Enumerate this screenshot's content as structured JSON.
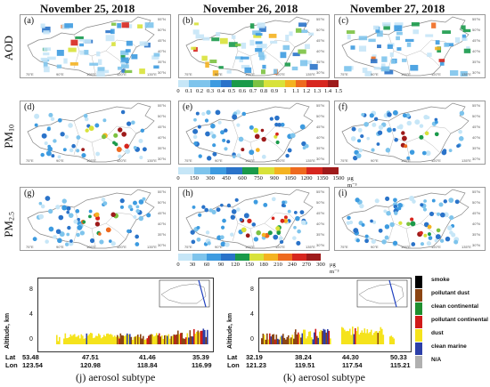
{
  "dates": [
    "November 25, 2018",
    "November 26, 2018",
    "November 27, 2018"
  ],
  "row_labels": {
    "aod": "AOD",
    "pm10_main": "PM",
    "pm10_sub": "10",
    "pm25_main": "PM",
    "pm25_sub": "2.5"
  },
  "panels": [
    "(a)",
    "(b)",
    "(c)",
    "(d)",
    "(e)",
    "(f)",
    "(g)",
    "(h)",
    "(i)"
  ],
  "map_axes": {
    "lat_labels": [
      "55°N",
      "50°N",
      "45°N",
      "40°N",
      "35°N",
      "30°N"
    ],
    "lon_labels": [
      "75°E",
      "90°E",
      "105°E",
      "120°E",
      "135°E"
    ]
  },
  "colorbars": {
    "aod": {
      "ticks": [
        "0",
        "0.1",
        "0.2",
        "0.3",
        "0.4",
        "0.5",
        "0.6",
        "0.7",
        "0.8",
        "0.9",
        "1",
        "1.1",
        "1.2",
        "1.3",
        "1.4",
        "1.5"
      ],
      "unit": ""
    },
    "pm10": {
      "ticks": [
        "0",
        "150",
        "300",
        "450",
        "600",
        "750",
        "900",
        "1050",
        "1200",
        "1350",
        "1500"
      ],
      "unit": "μg m⁻³"
    },
    "pm25": {
      "ticks": [
        "0",
        "30",
        "60",
        "90",
        "120",
        "150",
        "180",
        "210",
        "240",
        "270",
        "300"
      ],
      "unit": "μg m⁻³"
    }
  },
  "colors": {
    "scale": [
      "#ffffff",
      "#c6e6f7",
      "#7ec4ec",
      "#3d9be0",
      "#2a73c9",
      "#1a9a4a",
      "#7cc242",
      "#d8e23a",
      "#f4b321",
      "#ee6a1f",
      "#d7261e",
      "#9e1a1a"
    ],
    "smoke": "#000000",
    "pollutant_dust": "#8b4513",
    "clean_continental": "#1f8f2f",
    "pollutant_continental": "#d01a1a",
    "dust": "#f5e31c",
    "clean_marine": "#2c3fa8",
    "na": "#b0b0b0"
  },
  "lidar": {
    "ylabel": "Altitude, km",
    "yticks": [
      "8",
      "4",
      "0"
    ],
    "j": {
      "caption": "(j)  aerosol subtype",
      "lat_label": "Lat",
      "lon_label": "Lon",
      "lat": [
        "53.48",
        "47.51",
        "41.46",
        "35.39"
      ],
      "lon": [
        "123.54",
        "120.98",
        "118.84",
        "116.99"
      ]
    },
    "k": {
      "caption": "(k)  aerosol subtype",
      "lat_label": "Lat",
      "lon_label": "Lon",
      "lat": [
        "32.19",
        "38.24",
        "44.30",
        "50.33"
      ],
      "lon": [
        "121.23",
        "119.51",
        "117.54",
        "115.21"
      ]
    }
  },
  "legend": [
    "smoke",
    "pollutant dust",
    "clean continental",
    "pollutant continental",
    "dust",
    "clean marine",
    "N/A"
  ]
}
